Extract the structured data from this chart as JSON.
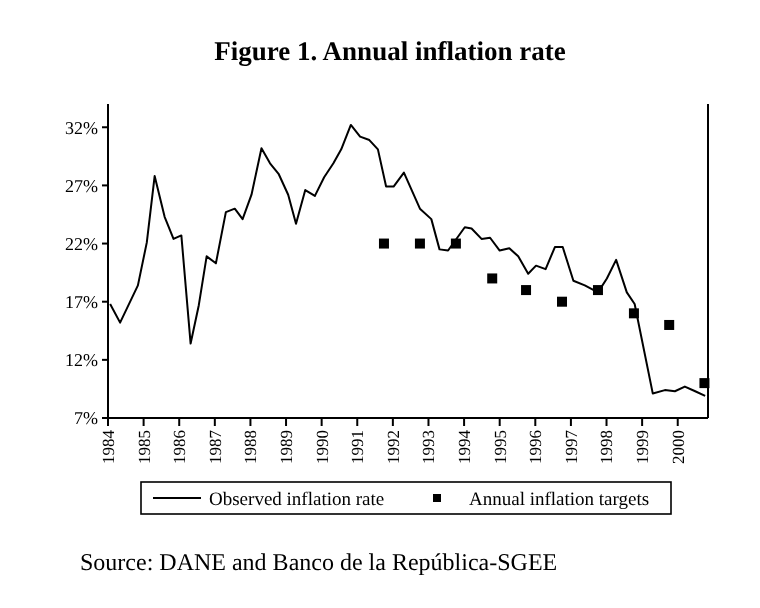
{
  "chart_data": {
    "type": "line",
    "title": "Figure 1. Annual inflation rate",
    "xlim": [
      1984,
      2000.85
    ],
    "xticks": [
      1984,
      1985,
      1986,
      1987,
      1988,
      1989,
      1990,
      1991,
      1992,
      1993,
      1994,
      1995,
      1996,
      1997,
      1998,
      1999,
      2000
    ],
    "ylim": [
      7,
      34
    ],
    "yticks": [
      {
        "value": 7,
        "label": "7%"
      },
      {
        "value": 12,
        "label": "12%"
      },
      {
        "value": 17,
        "label": "17%"
      },
      {
        "value": 22,
        "label": "22%"
      },
      {
        "value": 27,
        "label": "27%"
      },
      {
        "value": 32,
        "label": "32%"
      }
    ],
    "series": [
      {
        "name": "Observed inflation rate",
        "color": "#000000",
        "marker": "none",
        "x": [
          1984.06,
          1984.34,
          1984.84,
          1985.09,
          1985.31,
          1985.59,
          1985.84,
          1986.06,
          1986.32,
          1986.55,
          1986.77,
          1987.03,
          1987.31,
          1987.56,
          1987.78,
          1988.03,
          1988.31,
          1988.55,
          1988.79,
          1989.06,
          1989.28,
          1989.54,
          1989.81,
          1990.07,
          1990.33,
          1990.55,
          1990.82,
          1991.08,
          1991.34,
          1991.58,
          1991.81,
          1992.02,
          1992.31,
          1992.76,
          1993.08,
          1993.31,
          1993.55,
          1994.02,
          1994.21,
          1994.49,
          1994.73,
          1995.0,
          1995.27,
          1995.52,
          1995.8,
          1996.02,
          1996.29,
          1996.55,
          1996.77,
          1997.07,
          1997.39,
          1997.76,
          1998.01,
          1998.27,
          1998.57,
          1998.79,
          1999.3,
          1999.64,
          1999.92,
          2000.2,
          2000.49,
          2000.77
        ],
        "values": [
          16.8,
          15.2,
          18.4,
          22.1,
          27.8,
          24.3,
          22.4,
          22.7,
          13.4,
          16.7,
          20.9,
          20.3,
          24.7,
          25.0,
          24.1,
          26.2,
          30.2,
          28.9,
          28.0,
          26.2,
          23.7,
          26.6,
          26.1,
          27.7,
          28.9,
          30.1,
          32.2,
          31.2,
          30.9,
          30.1,
          26.9,
          26.9,
          28.1,
          25.0,
          24.1,
          21.5,
          21.4,
          23.4,
          23.3,
          22.4,
          22.5,
          21.4,
          21.6,
          20.9,
          19.4,
          20.1,
          19.8,
          21.7,
          21.7,
          18.8,
          18.4,
          17.8,
          19.0,
          20.6,
          17.8,
          16.8,
          9.1,
          9.4,
          9.3,
          9.7,
          9.3,
          8.9
        ]
      },
      {
        "name": "Annual inflation targets",
        "type": "scatter",
        "color": "#000000",
        "marker": "square",
        "x": [
          1991.75,
          1992.76,
          1993.77,
          1994.79,
          1995.74,
          1996.75,
          1997.76,
          1998.77,
          1999.76,
          2000.75
        ],
        "values": [
          22,
          22,
          22,
          19,
          18,
          17,
          18,
          16,
          15,
          10
        ]
      }
    ],
    "legend": "bottom",
    "grid": false,
    "annotations": [
      "Source: DANE and Banco de la República-SGEE"
    ]
  }
}
